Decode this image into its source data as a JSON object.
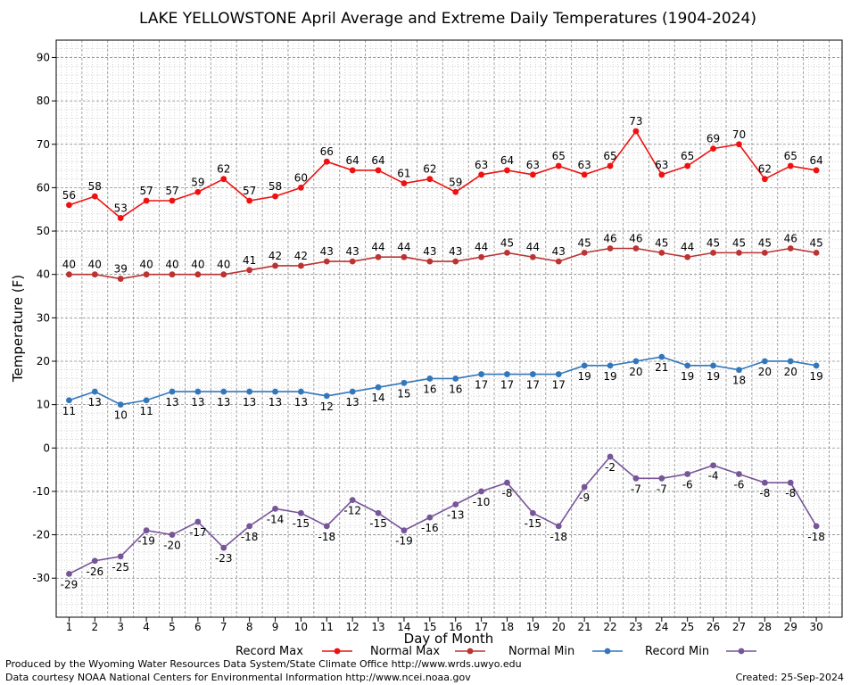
{
  "chart_data": {
    "type": "line",
    "title": "LAKE YELLOWSTONE April Average and Extreme Daily Temperatures (1904-2024)",
    "xlabel": "Day of Month",
    "ylabel": "Temperature (F)",
    "x": [
      1,
      2,
      3,
      4,
      5,
      6,
      7,
      8,
      9,
      10,
      11,
      12,
      13,
      14,
      15,
      16,
      17,
      18,
      19,
      20,
      21,
      22,
      23,
      24,
      25,
      26,
      27,
      28,
      29,
      30
    ],
    "ylim": [
      -39,
      94
    ],
    "yticks": [
      90,
      80,
      70,
      60,
      50,
      40,
      30,
      20,
      10,
      0,
      -10,
      -20,
      -30
    ],
    "grid": true,
    "legend_position": "bottom",
    "series": [
      {
        "name": "Record Max",
        "color": "#ee1111",
        "values": [
          56,
          58,
          53,
          57,
          57,
          59,
          62,
          57,
          58,
          60,
          66,
          64,
          64,
          61,
          62,
          59,
          63,
          64,
          63,
          65,
          63,
          65,
          73,
          63,
          65,
          69,
          70,
          62,
          65,
          64
        ]
      },
      {
        "name": "Normal Max",
        "color": "#bb3333",
        "values": [
          40,
          40,
          39,
          40,
          40,
          40,
          40,
          41,
          42,
          42,
          43,
          43,
          44,
          44,
          43,
          43,
          44,
          45,
          44,
          43,
          45,
          46,
          46,
          45,
          44,
          45,
          45,
          45,
          46,
          45
        ]
      },
      {
        "name": "Normal Min",
        "color": "#3377bb",
        "values": [
          11,
          13,
          10,
          11,
          13,
          13,
          13,
          13,
          13,
          13,
          12,
          13,
          14,
          15,
          16,
          16,
          17,
          17,
          17,
          17,
          19,
          19,
          20,
          21,
          19,
          19,
          18,
          20,
          20,
          19
        ]
      },
      {
        "name": "Record Min",
        "color": "#775599",
        "values": [
          -29,
          -26,
          -25,
          -19,
          -20,
          -17,
          -23,
          -18,
          -14,
          -15,
          -18,
          -12,
          -15,
          -19,
          -16,
          -13,
          -10,
          -8,
          -15,
          -18,
          -9,
          -2,
          -7,
          -7,
          -6,
          -4,
          -6,
          -8,
          -8,
          -18
        ]
      }
    ]
  },
  "footer": {
    "left_line1": "Produced by the Wyoming Water Resources Data System/State Climate Office http://www.wrds.uwyo.edu",
    "left_line2": "Data courtesy NOAA National Centers for Environmental Information http://www.ncei.noaa.gov",
    "created": "Created:  25-Sep-2024"
  }
}
